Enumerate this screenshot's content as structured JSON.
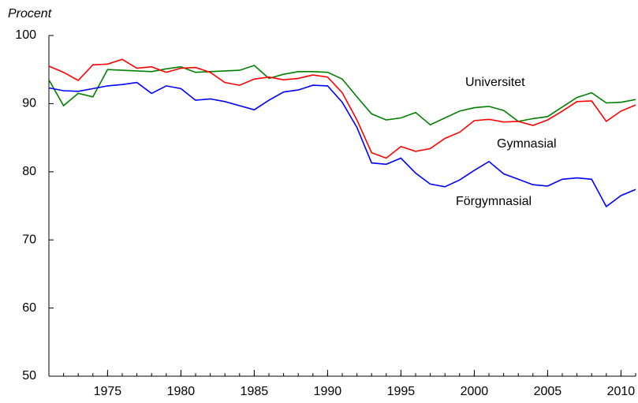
{
  "chart_data": {
    "type": "line",
    "y_label": "Procent",
    "x": [
      1971,
      1972,
      1973,
      1974,
      1975,
      1976,
      1977,
      1978,
      1979,
      1980,
      1981,
      1982,
      1983,
      1984,
      1985,
      1986,
      1987,
      1988,
      1989,
      1990,
      1991,
      1992,
      1993,
      1994,
      1995,
      1996,
      1997,
      1998,
      1999,
      2000,
      2001,
      2002,
      2003,
      2004,
      2005,
      2006,
      2007,
      2008,
      2009,
      2010,
      2011
    ],
    "series": [
      {
        "name": "Universitet",
        "color": "#008000",
        "values": [
          93.5,
          89.7,
          91.5,
          91.0,
          95.0,
          94.9,
          94.8,
          94.7,
          95.1,
          95.4,
          94.6,
          94.7,
          94.8,
          94.9,
          95.6,
          93.7,
          94.3,
          94.7,
          94.7,
          94.6,
          93.6,
          91.0,
          88.5,
          87.6,
          87.9,
          88.7,
          86.9,
          87.9,
          88.9,
          89.4,
          89.6,
          89.0,
          87.4,
          87.8,
          88.1,
          89.5,
          90.9,
          91.6,
          90.1,
          90.2,
          90.6
        ]
      },
      {
        "name": "Gymnasial",
        "color": "#ff0000",
        "values": [
          95.5,
          94.6,
          93.4,
          95.7,
          95.8,
          96.5,
          95.2,
          95.4,
          94.6,
          95.2,
          95.3,
          94.6,
          93.1,
          92.7,
          93.6,
          93.9,
          93.5,
          93.7,
          94.2,
          93.9,
          91.6,
          87.6,
          82.8,
          82.0,
          83.7,
          83.0,
          83.4,
          84.9,
          85.8,
          87.5,
          87.7,
          87.3,
          87.4,
          86.8,
          87.6,
          88.9,
          90.3,
          90.4,
          87.4,
          88.9,
          89.8
        ]
      },
      {
        "name": "Förgymnasial",
        "color": "#0000ff",
        "values": [
          92.3,
          91.9,
          91.8,
          92.2,
          92.6,
          92.8,
          93.1,
          91.5,
          92.6,
          92.2,
          90.5,
          90.7,
          90.3,
          89.7,
          89.1,
          90.5,
          91.7,
          92.0,
          92.7,
          92.6,
          90.2,
          86.5,
          81.3,
          81.1,
          82.0,
          79.8,
          78.2,
          77.8,
          78.8,
          80.2,
          81.5,
          79.7,
          78.9,
          78.1,
          77.9,
          78.9,
          79.1,
          78.9,
          74.9,
          76.5,
          77.4
        ]
      }
    ],
    "xlim": [
      1971,
      2011
    ],
    "xticks": [
      1975,
      1980,
      1985,
      1990,
      1995,
      2000,
      2005,
      2010
    ],
    "ylim": [
      50,
      100
    ],
    "yticks": [
      50,
      60,
      70,
      80,
      90,
      100
    ]
  }
}
